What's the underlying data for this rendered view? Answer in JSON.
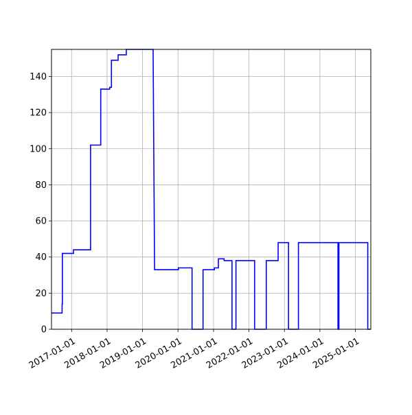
{
  "chart_data": {
    "type": "line",
    "title": "",
    "xlabel": "",
    "ylabel": "",
    "grid": true,
    "xlim": [
      "2016-06-08",
      "2025-06-08"
    ],
    "ylim": [
      0,
      155
    ],
    "x_ticks": [
      "2017-01-01",
      "2018-01-01",
      "2019-01-01",
      "2020-01-01",
      "2021-01-01",
      "2022-01-01",
      "2023-01-01",
      "2024-01-01",
      "2025-01-01"
    ],
    "y_ticks": [
      "0",
      "20",
      "40",
      "60",
      "80",
      "100",
      "120",
      "140"
    ],
    "series": [
      {
        "color": "#0000ff",
        "x": [
          "2016-06-08",
          "2016-09-25",
          "2016-09-25",
          "2016-09-28",
          "2016-09-28",
          "2017-01-20",
          "2017-01-20",
          "2017-07-15",
          "2017-07-15",
          "2017-10-28",
          "2017-10-28",
          "2018-01-28",
          "2018-01-28",
          "2018-02-15",
          "2018-02-15",
          "2018-04-25",
          "2018-04-25",
          "2018-07-18",
          "2018-07-18",
          "2018-08-05",
          "2018-08-05",
          "2018-10-25",
          "2018-10-25",
          "2019-01-05",
          "2019-01-05",
          "2019-03-28",
          "2019-04-20",
          "2019-04-20",
          "2019-05-05",
          "2019-05-05",
          "2019-05-12",
          "2019-05-20",
          "2020-01-05",
          "2020-01-05",
          "2020-05-25",
          "2020-05-25",
          "2020-09-15",
          "2020-09-15",
          "2021-01-10",
          "2021-01-10",
          "2021-02-20",
          "2021-02-20",
          "2021-04-20",
          "2021-04-20",
          "2021-07-10",
          "2021-07-10",
          "2021-08-20",
          "2021-08-20",
          "2022-02-28",
          "2022-02-28",
          "2022-06-28",
          "2022-06-28",
          "2022-10-28",
          "2022-10-28",
          "2023-02-12",
          "2023-02-12",
          "2023-05-25",
          "2023-05-25",
          "2024-07-05",
          "2024-07-05",
          "2024-07-15",
          "2024-07-15",
          "2025-05-08",
          "2025-05-08",
          "2025-06-08"
        ],
        "y": [
          9,
          9,
          14,
          14,
          42,
          42,
          44,
          44,
          102,
          102,
          133,
          133,
          134,
          134,
          149,
          149,
          152,
          152,
          155,
          155,
          155,
          155,
          155,
          155,
          155,
          155,
          155,
          155,
          33,
          33,
          33,
          33,
          33,
          34,
          34,
          0,
          0,
          33,
          33,
          34,
          34,
          39,
          39,
          38,
          38,
          0,
          0,
          38,
          38,
          0,
          0,
          38,
          38,
          48,
          48,
          0,
          0,
          48,
          48,
          0,
          0,
          48,
          48,
          0,
          0
        ]
      }
    ]
  }
}
